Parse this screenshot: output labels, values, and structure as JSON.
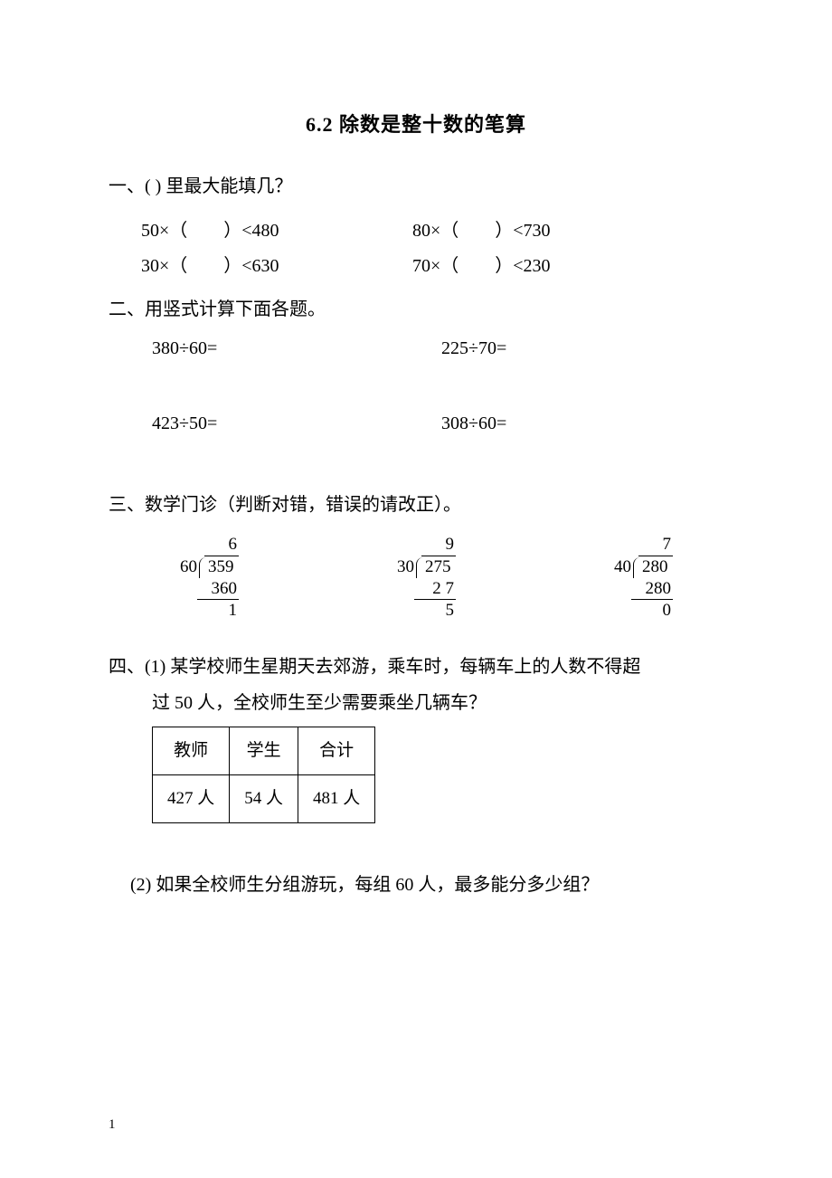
{
  "title": "6.2  除数是整十数的笔算",
  "sections": {
    "s1": {
      "head": "一、(  ) 里最大能填几？",
      "items": [
        "50×（　　）<480",
        "80×（　　）<730",
        "30×（　　）<630",
        "70×（　　）<230"
      ]
    },
    "s2": {
      "head": "二、用竖式计算下面各题。",
      "items": [
        "380÷60=",
        "225÷70=",
        "423÷50=",
        "308÷60="
      ]
    },
    "s3": {
      "head": "三、数学门诊（判断对错，错误的请改正）。",
      "problems": [
        {
          "quotient": "6",
          "divisor": "60",
          "dividend": "359",
          "sub": "360",
          "rem": "1"
        },
        {
          "quotient": "9",
          "divisor": "30",
          "dividend": "275",
          "sub": "2 7",
          "rem": "5"
        },
        {
          "quotient": "7",
          "divisor": "40",
          "dividend": "280",
          "sub": "280",
          "rem": "0"
        }
      ]
    },
    "s4": {
      "line1": "四、(1) 某学校师生星期天去郊游，乘车时，每辆车上的人数不得超",
      "line2": "过 50 人，全校师生至少需要乘坐几辆车？",
      "table": {
        "headers": [
          "教师",
          "学生",
          "合计"
        ],
        "row": [
          "427 人",
          "54 人",
          "481 人"
        ]
      },
      "q2": "(2) 如果全校师生分组游玩，每组 60 人，最多能分多少组？"
    }
  },
  "page_number": "1",
  "colors": {
    "text": "#000000",
    "background": "#ffffff",
    "border": "#000000"
  },
  "fonts": {
    "body_family": "SimSun",
    "body_size_pt": 15,
    "title_size_pt": 16,
    "title_weight": "bold"
  }
}
